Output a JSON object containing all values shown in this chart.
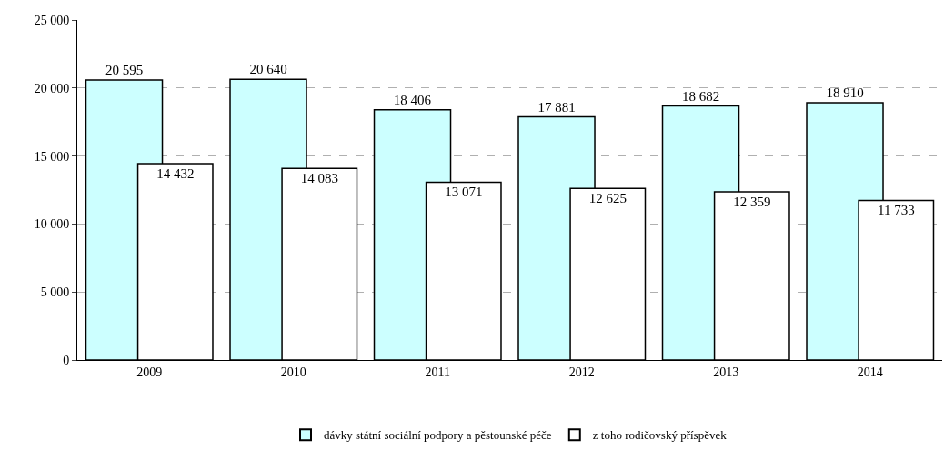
{
  "chart_data": {
    "type": "bar",
    "categories": [
      "2009",
      "2010",
      "2011",
      "2012",
      "2013",
      "2014"
    ],
    "series": [
      {
        "name": "dávky státní sociální podpory a pěstounské péče",
        "color": "#ccffff",
        "values": [
          20595,
          20640,
          18406,
          17881,
          18682,
          18910
        ]
      },
      {
        "name": "z toho rodičovský příspěvek",
        "color": "#ffffff",
        "values": [
          14432,
          14083,
          13071,
          12625,
          12359,
          11733
        ]
      }
    ],
    "ylim": [
      0,
      25000
    ],
    "yticks": [
      {
        "value": 0,
        "label": "0"
      },
      {
        "value": 5000,
        "label": "5 000"
      },
      {
        "value": 10000,
        "label": "10 000"
      },
      {
        "value": 15000,
        "label": "15 000"
      },
      {
        "value": 20000,
        "label": "20 000"
      },
      {
        "value": 25000,
        "label": "25 000"
      }
    ],
    "data_labels": true,
    "grid": "y",
    "legend": "bottom"
  }
}
